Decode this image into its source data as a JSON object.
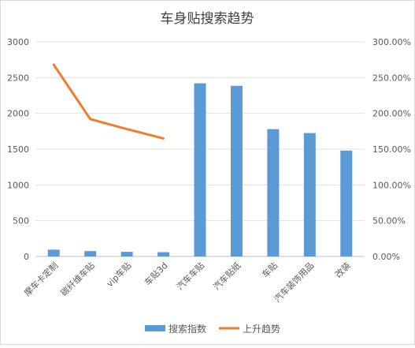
{
  "chart_data": {
    "type": "bar",
    "title": "车身贴搜索趋势",
    "categories": [
      "摩车卡定制",
      "碳纤维车贴",
      "vip车贴",
      "车贴3d",
      "汽车车贴",
      "汽车贴纸",
      "车贴",
      "汽车装饰用品",
      "改装"
    ],
    "series": [
      {
        "name": "搜索指数",
        "type": "bar",
        "axis": "left",
        "color": "#5b9bd5",
        "values": [
          95,
          75,
          65,
          60,
          2420,
          2385,
          1780,
          1725,
          1480
        ]
      },
      {
        "name": "上升趋势",
        "type": "line",
        "axis": "right",
        "color": "#ed7d31",
        "values": [
          2.68,
          1.92,
          1.78,
          1.65,
          null,
          null,
          null,
          null,
          null
        ]
      }
    ],
    "y_left": {
      "min": 0,
      "max": 3000,
      "ticks": [
        "0",
        "500",
        "1000",
        "1500",
        "2000",
        "2500",
        "3000"
      ]
    },
    "y_right": {
      "min": 0,
      "max": 3,
      "ticks": [
        "0.00%",
        "50.00%",
        "100.00%",
        "150.00%",
        "200.00%",
        "250.00%",
        "300.00%"
      ]
    },
    "grid": true,
    "legend": "bottom"
  }
}
